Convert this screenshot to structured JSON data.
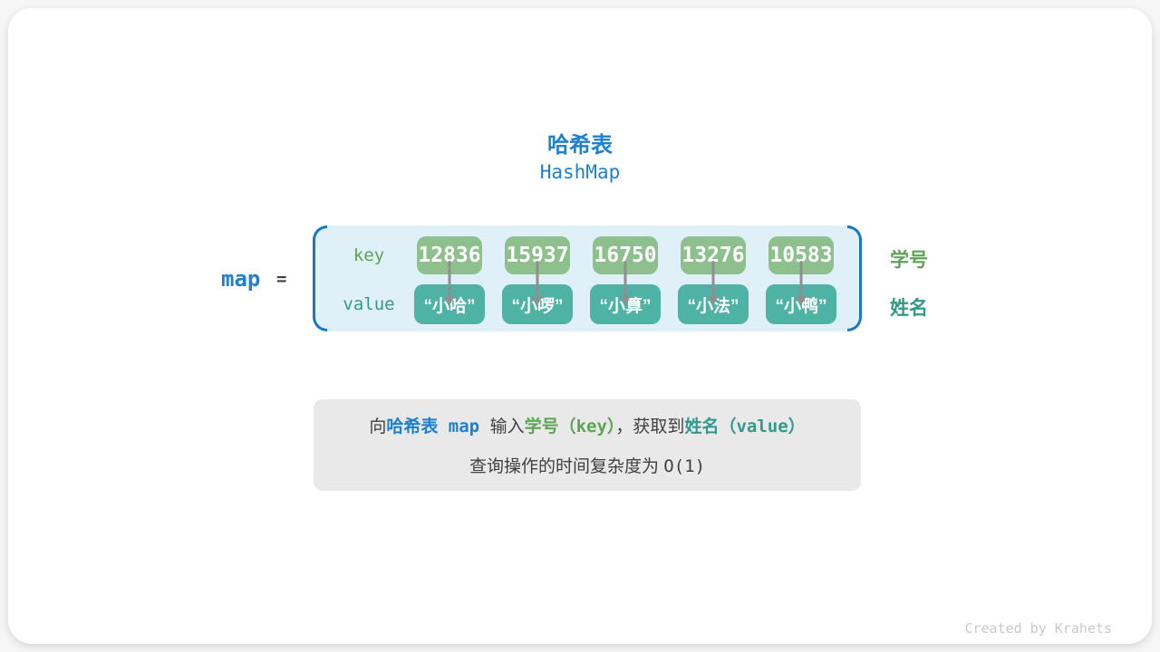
{
  "colors": {
    "accent_blue": "#1d80d2",
    "bracket_blue": "#1778c9",
    "container_bg": "#dff0f9",
    "key_box_green": "#8dc08d",
    "value_box_teal": "#4eb2a5",
    "key_text_green": "#5ca554",
    "value_text_teal": "#33998a",
    "note_bg": "#e9e9e9",
    "body_text": "#404040",
    "arrow_gray": "#8f8f8f",
    "footer_gray": "#c9c9c9"
  },
  "header": {
    "title": "哈希表",
    "subtitle": "HashMap"
  },
  "map": {
    "var_name": "map",
    "equals": "=",
    "key_label": "key",
    "value_label": "value",
    "entries": [
      {
        "key": "12836",
        "value": "“小哈”"
      },
      {
        "key": "15937",
        "value": "“小啰”"
      },
      {
        "key": "16750",
        "value": "“小算”"
      },
      {
        "key": "13276",
        "value": "“小法”"
      },
      {
        "key": "10583",
        "value": "“小鸭”"
      }
    ],
    "side_labels": {
      "key": "学号",
      "value": "姓名"
    }
  },
  "note": {
    "line1": [
      "向",
      "哈希表",
      " map ",
      "输入",
      "学号",
      "（key）",
      "，获取到",
      "姓名",
      "（value）"
    ],
    "line2_text": "查询操作的时间复杂度为 ",
    "line2_code": "O(1)"
  },
  "footer": {
    "credit": "Created by Krahets"
  }
}
